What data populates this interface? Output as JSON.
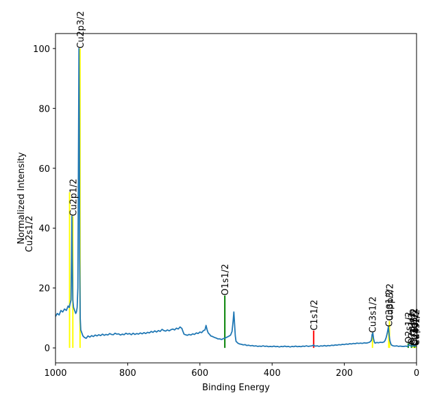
{
  "chart_data": {
    "type": "line",
    "title": "",
    "xlabel": "Binding Energy",
    "ylabel": "Normalized Intensity",
    "xlim": [
      1000,
      0
    ],
    "ylim": [
      -5,
      105
    ],
    "x_reversed": true,
    "grid": false,
    "x_ticks": [
      1000,
      800,
      600,
      400,
      200,
      0
    ],
    "y_ticks": [
      0,
      20,
      40,
      60,
      80,
      100
    ],
    "series": [
      {
        "color": "#1f77b4",
        "points": [
          [
            1000,
            10.5
          ],
          [
            995,
            11.5
          ],
          [
            990,
            11.0
          ],
          [
            985,
            12.5
          ],
          [
            980,
            12.0
          ],
          [
            975,
            13.0
          ],
          [
            970,
            12.5
          ],
          [
            965,
            14.0
          ],
          [
            962,
            13.5
          ],
          [
            959,
            15.0
          ],
          [
            957,
            16.0
          ],
          [
            955.5,
            30.0
          ],
          [
            954.5,
            44.0
          ],
          [
            953.5,
            30.0
          ],
          [
            952,
            16.0
          ],
          [
            950,
            13.5
          ],
          [
            947,
            12.5
          ],
          [
            944,
            11.5
          ],
          [
            942,
            12.0
          ],
          [
            940,
            13.5
          ],
          [
            938,
            20.0
          ],
          [
            936.5,
            60.0
          ],
          [
            935,
            100.0
          ],
          [
            934,
            75.0
          ],
          [
            933,
            30.0
          ],
          [
            931.5,
            10.0
          ],
          [
            930,
            6.0
          ],
          [
            927,
            5.0
          ],
          [
            924,
            4.0
          ],
          [
            920,
            3.5
          ],
          [
            915,
            3.2
          ],
          [
            910,
            4.0
          ],
          [
            905,
            3.6
          ],
          [
            900,
            4.1
          ],
          [
            895,
            3.8
          ],
          [
            890,
            4.3
          ],
          [
            885,
            4.0
          ],
          [
            880,
            4.4
          ],
          [
            875,
            4.1
          ],
          [
            870,
            4.6
          ],
          [
            865,
            4.2
          ],
          [
            860,
            4.5
          ],
          [
            855,
            4.3
          ],
          [
            850,
            4.8
          ],
          [
            845,
            4.5
          ],
          [
            840,
            4.4
          ],
          [
            835,
            4.9
          ],
          [
            830,
            4.6
          ],
          [
            825,
            4.7
          ],
          [
            820,
            4.3
          ],
          [
            815,
            4.6
          ],
          [
            810,
            4.4
          ],
          [
            805,
            4.9
          ],
          [
            800,
            4.6
          ],
          [
            795,
            4.8
          ],
          [
            790,
            4.4
          ],
          [
            785,
            4.9
          ],
          [
            780,
            4.5
          ],
          [
            775,
            4.8
          ],
          [
            770,
            4.6
          ],
          [
            765,
            5.0
          ],
          [
            760,
            4.7
          ],
          [
            755,
            5.1
          ],
          [
            750,
            4.8
          ],
          [
            745,
            5.2
          ],
          [
            740,
            5.0
          ],
          [
            735,
            5.5
          ],
          [
            730,
            5.2
          ],
          [
            725,
            5.7
          ],
          [
            720,
            5.3
          ],
          [
            715,
            5.8
          ],
          [
            710,
            5.5
          ],
          [
            705,
            6.2
          ],
          [
            700,
            5.8
          ],
          [
            695,
            5.6
          ],
          [
            690,
            6.0
          ],
          [
            685,
            5.7
          ],
          [
            680,
            6.1
          ],
          [
            675,
            6.3
          ],
          [
            670,
            6.0
          ],
          [
            665,
            6.6
          ],
          [
            660,
            6.3
          ],
          [
            655,
            7.0
          ],
          [
            650,
            6.5
          ],
          [
            647,
            5.5
          ],
          [
            644,
            4.6
          ],
          [
            640,
            4.4
          ],
          [
            635,
            4.2
          ],
          [
            630,
            4.5
          ],
          [
            625,
            4.3
          ],
          [
            620,
            4.7
          ],
          [
            615,
            4.5
          ],
          [
            610,
            5.0
          ],
          [
            605,
            4.8
          ],
          [
            600,
            5.3
          ],
          [
            595,
            5.1
          ],
          [
            590,
            5.8
          ],
          [
            586,
            6.0
          ],
          [
            583,
            7.5
          ],
          [
            580,
            6.0
          ],
          [
            577,
            5.0
          ],
          [
            573,
            4.5
          ],
          [
            570,
            4.0
          ],
          [
            565,
            3.8
          ],
          [
            560,
            3.5
          ],
          [
            555,
            3.3
          ],
          [
            550,
            3.0
          ],
          [
            545,
            3.0
          ],
          [
            540,
            2.8
          ],
          [
            535,
            3.1
          ],
          [
            530,
            3.3
          ],
          [
            525,
            3.6
          ],
          [
            520,
            3.9
          ],
          [
            515,
            4.3
          ],
          [
            511,
            5.5
          ],
          [
            508,
            9.0
          ],
          [
            506,
            12.0
          ],
          [
            504,
            8.0
          ],
          [
            502,
            4.0
          ],
          [
            500,
            2.2
          ],
          [
            495,
            1.6
          ],
          [
            490,
            1.3
          ],
          [
            485,
            1.2
          ],
          [
            480,
            1.0
          ],
          [
            475,
            1.1
          ],
          [
            470,
            0.8
          ],
          [
            465,
            0.9
          ],
          [
            460,
            0.7
          ],
          [
            455,
            0.8
          ],
          [
            450,
            0.6
          ],
          [
            445,
            0.7
          ],
          [
            440,
            0.5
          ],
          [
            435,
            0.6
          ],
          [
            430,
            0.5
          ],
          [
            425,
            0.7
          ],
          [
            420,
            0.5
          ],
          [
            415,
            0.6
          ],
          [
            410,
            0.4
          ],
          [
            405,
            0.5
          ],
          [
            400,
            0.4
          ],
          [
            395,
            0.6
          ],
          [
            390,
            0.4
          ],
          [
            385,
            0.5
          ],
          [
            380,
            0.3
          ],
          [
            375,
            0.5
          ],
          [
            370,
            0.4
          ],
          [
            365,
            0.6
          ],
          [
            360,
            0.4
          ],
          [
            355,
            0.5
          ],
          [
            350,
            0.3
          ],
          [
            345,
            0.5
          ],
          [
            340,
            0.4
          ],
          [
            335,
            0.6
          ],
          [
            330,
            0.4
          ],
          [
            325,
            0.5
          ],
          [
            320,
            0.4
          ],
          [
            315,
            0.6
          ],
          [
            310,
            0.5
          ],
          [
            305,
            0.7
          ],
          [
            300,
            0.5
          ],
          [
            295,
            0.6
          ],
          [
            290,
            0.7
          ],
          [
            287,
            0.8
          ],
          [
            285,
            1.0
          ],
          [
            283,
            0.7
          ],
          [
            280,
            0.6
          ],
          [
            275,
            0.7
          ],
          [
            270,
            0.5
          ],
          [
            265,
            0.7
          ],
          [
            260,
            0.6
          ],
          [
            255,
            0.8
          ],
          [
            250,
            0.6
          ],
          [
            245,
            0.8
          ],
          [
            240,
            0.7
          ],
          [
            235,
            0.9
          ],
          [
            230,
            0.8
          ],
          [
            225,
            1.0
          ],
          [
            220,
            0.9
          ],
          [
            215,
            1.1
          ],
          [
            210,
            1.0
          ],
          [
            205,
            1.2
          ],
          [
            200,
            1.1
          ],
          [
            195,
            1.3
          ],
          [
            190,
            1.2
          ],
          [
            185,
            1.4
          ],
          [
            180,
            1.3
          ],
          [
            175,
            1.5
          ],
          [
            170,
            1.4
          ],
          [
            165,
            1.6
          ],
          [
            160,
            1.5
          ],
          [
            155,
            1.6
          ],
          [
            150,
            1.5
          ],
          [
            145,
            1.7
          ],
          [
            140,
            1.6
          ],
          [
            135,
            1.7
          ],
          [
            130,
            1.9
          ],
          [
            125,
            2.5
          ],
          [
            123,
            4.5
          ],
          [
            121,
            5.0
          ],
          [
            119,
            3.0
          ],
          [
            117,
            2.0
          ],
          [
            115,
            1.6
          ],
          [
            110,
            1.8
          ],
          [
            105,
            1.7
          ],
          [
            100,
            1.9
          ],
          [
            95,
            1.8
          ],
          [
            90,
            2.0
          ],
          [
            87,
            2.5
          ],
          [
            84,
            3.5
          ],
          [
            81,
            5.0
          ],
          [
            78,
            7.0
          ],
          [
            76,
            4.5
          ],
          [
            74,
            2.5
          ],
          [
            72,
            1.6
          ],
          [
            70,
            1.0
          ],
          [
            65,
            0.7
          ],
          [
            60,
            0.6
          ],
          [
            55,
            0.7
          ],
          [
            50,
            0.5
          ],
          [
            45,
            0.6
          ],
          [
            40,
            0.5
          ],
          [
            35,
            0.5
          ],
          [
            30,
            0.6
          ],
          [
            25,
            0.5
          ],
          [
            22,
            0.9
          ],
          [
            20,
            1.0
          ],
          [
            18,
            0.8
          ],
          [
            15,
            0.6
          ],
          [
            10,
            0.6
          ],
          [
            5,
            0.7
          ],
          [
            0,
            0.5
          ]
        ]
      }
    ],
    "reference_lines": [
      {
        "label": "Cu2s1/2",
        "x": 961,
        "y0": 0,
        "y1": 52,
        "color": "#ffff00",
        "show_label": false
      },
      {
        "label": "Cu2p1/2",
        "x": 952,
        "y0": 0,
        "y1": 44,
        "color": "#ffff00",
        "show_label": true
      },
      {
        "label": "Cu2p3/2",
        "x": 932,
        "y0": 0,
        "y1": 100,
        "color": "#ffff00",
        "show_label": true
      },
      {
        "label": "O1s1/2",
        "x": 531,
        "y0": 0,
        "y1": 17.5,
        "color": "#008000",
        "show_label": true
      },
      {
        "label": "C1s1/2",
        "x": 285,
        "y0": 0,
        "y1": 5.8,
        "color": "#ff0000",
        "show_label": true
      },
      {
        "label": "Cu3s1/2",
        "x": 122,
        "y0": 0,
        "y1": 5.0,
        "color": "#ffff00",
        "show_label": true
      },
      {
        "label": "Cu3p1/2",
        "x": 77,
        "y0": 0,
        "y1": 7.0,
        "color": "#ffff00",
        "show_label": true
      },
      {
        "label": "Cu3p3/2",
        "x": 75,
        "y0": 0,
        "y1": 9.0,
        "color": "#ffff00",
        "show_label": true
      },
      {
        "label": "O2s1/2",
        "x": 23,
        "y0": 0,
        "y1": 1.5,
        "color": "#008000",
        "show_label": true
      },
      {
        "label": "O2p1/2",
        "x": 14,
        "y0": 0,
        "y1": 1.0,
        "color": "#008000",
        "show_label": true
      },
      {
        "label": "Cu3d3/2",
        "x": 9,
        "y0": 0,
        "y1": 0.7,
        "color": "#ffff00",
        "show_label": true
      },
      {
        "label": "Cu3d5/2",
        "x": 7,
        "y0": 0,
        "y1": 0.7,
        "color": "#ffff00",
        "show_label": true
      },
      {
        "label": "O2p3/2",
        "x": 5,
        "y0": 0,
        "y1": 0.7,
        "color": "#008000",
        "show_label": true
      },
      {
        "label": "Cu4s1/2",
        "x": 2,
        "y0": 0,
        "y1": 0.7,
        "color": "#ffff00",
        "show_label": true
      }
    ],
    "annotations": [
      {
        "text": "Cu2s1/2",
        "note": "rendered left of y-axis near y=40"
      }
    ]
  }
}
